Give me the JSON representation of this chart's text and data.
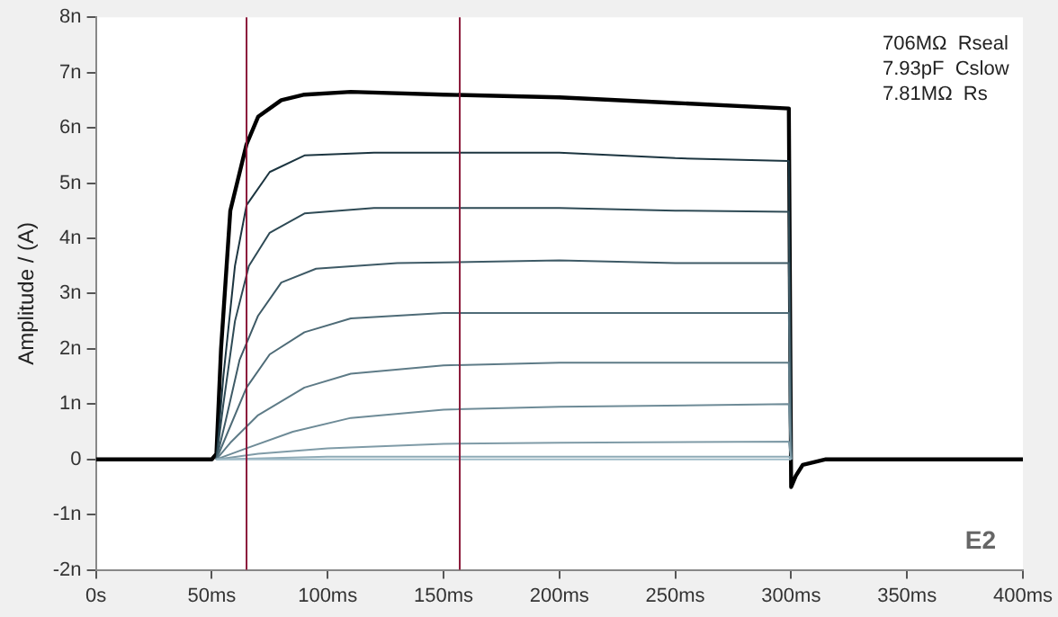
{
  "chart_data": {
    "type": "line",
    "ylabel": "Amplitude / (A)",
    "xlim": [
      0,
      400
    ],
    "xticks": [
      {
        "value": 0,
        "label": "0s"
      },
      {
        "value": 50,
        "label": "50ms"
      },
      {
        "value": 100,
        "label": "100ms"
      },
      {
        "value": 150,
        "label": "150ms"
      },
      {
        "value": 200,
        "label": "200ms"
      },
      {
        "value": 250,
        "label": "250ms"
      },
      {
        "value": 300,
        "label": "300ms"
      },
      {
        "value": 350,
        "label": "350ms"
      },
      {
        "value": 400,
        "label": "400ms"
      }
    ],
    "ylim": [
      -2,
      8
    ],
    "yticks": [
      {
        "value": -2,
        "label": "-2n"
      },
      {
        "value": -1,
        "label": "-1n"
      },
      0,
      {
        "value": 1,
        "label": "1n"
      },
      {
        "value": 2,
        "label": "2n"
      },
      {
        "value": 3,
        "label": "3n"
      },
      {
        "value": 4,
        "label": "4n"
      },
      {
        "value": 5,
        "label": "5n"
      },
      {
        "value": 6,
        "label": "6n"
      },
      {
        "value": 7,
        "label": "7n"
      },
      {
        "value": 8,
        "label": "8n"
      }
    ],
    "grid": false,
    "legend": false,
    "marker": "none",
    "line_style": "solid",
    "series": [
      {
        "color": "#a0bcc8",
        "x": [
          52,
          100,
          200,
          299,
          300
        ],
        "values": [
          0,
          0,
          0,
          0,
          0
        ]
      },
      {
        "color": "#8fabb7",
        "x": [
          52,
          100,
          200,
          299,
          300
        ],
        "values": [
          0,
          0.05,
          0.05,
          0.05,
          0
        ]
      },
      {
        "color": "#7f9ba7",
        "x": [
          52,
          70,
          100,
          150,
          200,
          299,
          300
        ],
        "values": [
          0,
          0.1,
          0.2,
          0.28,
          0.3,
          0.32,
          0
        ]
      },
      {
        "color": "#6e8b97",
        "x": [
          52,
          65,
          85,
          110,
          150,
          200,
          299,
          300
        ],
        "values": [
          0,
          0.2,
          0.5,
          0.75,
          0.9,
          0.95,
          1,
          0
        ]
      },
      {
        "color": "#5e7b87",
        "x": [
          52,
          58,
          70,
          90,
          110,
          150,
          200,
          299,
          300
        ],
        "values": [
          0,
          0.3,
          0.8,
          1.3,
          1.55,
          1.7,
          1.75,
          1.75,
          0
        ]
      },
      {
        "color": "#4e6b77",
        "x": [
          52,
          57,
          65,
          75,
          90,
          110,
          150,
          299,
          300
        ],
        "values": [
          0,
          0.5,
          1.3,
          1.9,
          2.3,
          2.55,
          2.65,
          2.65,
          0
        ]
      },
      {
        "color": "#3e5a66",
        "x": [
          52,
          56,
          62,
          70,
          80,
          95,
          130,
          200,
          250,
          299,
          300
        ],
        "values": [
          0,
          0.7,
          1.8,
          2.6,
          3.2,
          3.45,
          3.55,
          3.6,
          3.55,
          3.55,
          0
        ]
      },
      {
        "color": "#2e4a55",
        "x": [
          52,
          55,
          60,
          66,
          75,
          90,
          120,
          200,
          250,
          299,
          300
        ],
        "values": [
          0,
          1,
          2.5,
          3.5,
          4.1,
          4.45,
          4.55,
          4.55,
          4.5,
          4.48,
          0
        ]
      },
      {
        "color": "#1c3540",
        "x": [
          52,
          55,
          60,
          65,
          75,
          90,
          120,
          200,
          250,
          299,
          300
        ],
        "values": [
          0,
          1.5,
          3.5,
          4.6,
          5.2,
          5.5,
          5.55,
          5.55,
          5.45,
          5.4,
          0
        ]
      },
      {
        "color": "#000000",
        "x": [
          0,
          50,
          52,
          54,
          58,
          65,
          70,
          80,
          90,
          110,
          150,
          200,
          250,
          299,
          300,
          302,
          305,
          315,
          400
        ],
        "values": [
          0,
          0,
          0.1,
          2,
          4.5,
          5.7,
          6.2,
          6.5,
          6.6,
          6.65,
          6.6,
          6.55,
          6.45,
          6.35,
          -0.5,
          -0.3,
          -0.1,
          0,
          0
        ]
      }
    ],
    "ref_lines": [
      {
        "axis": "x",
        "value": 65,
        "color": "#8b1a3a"
      },
      {
        "axis": "x",
        "value": 157,
        "color": "#8b1a3a"
      }
    ],
    "annotations": [
      "706MΩ  Rseal",
      "7.93pF  Cslow",
      "7.81MΩ  Rs",
      "E2"
    ]
  }
}
